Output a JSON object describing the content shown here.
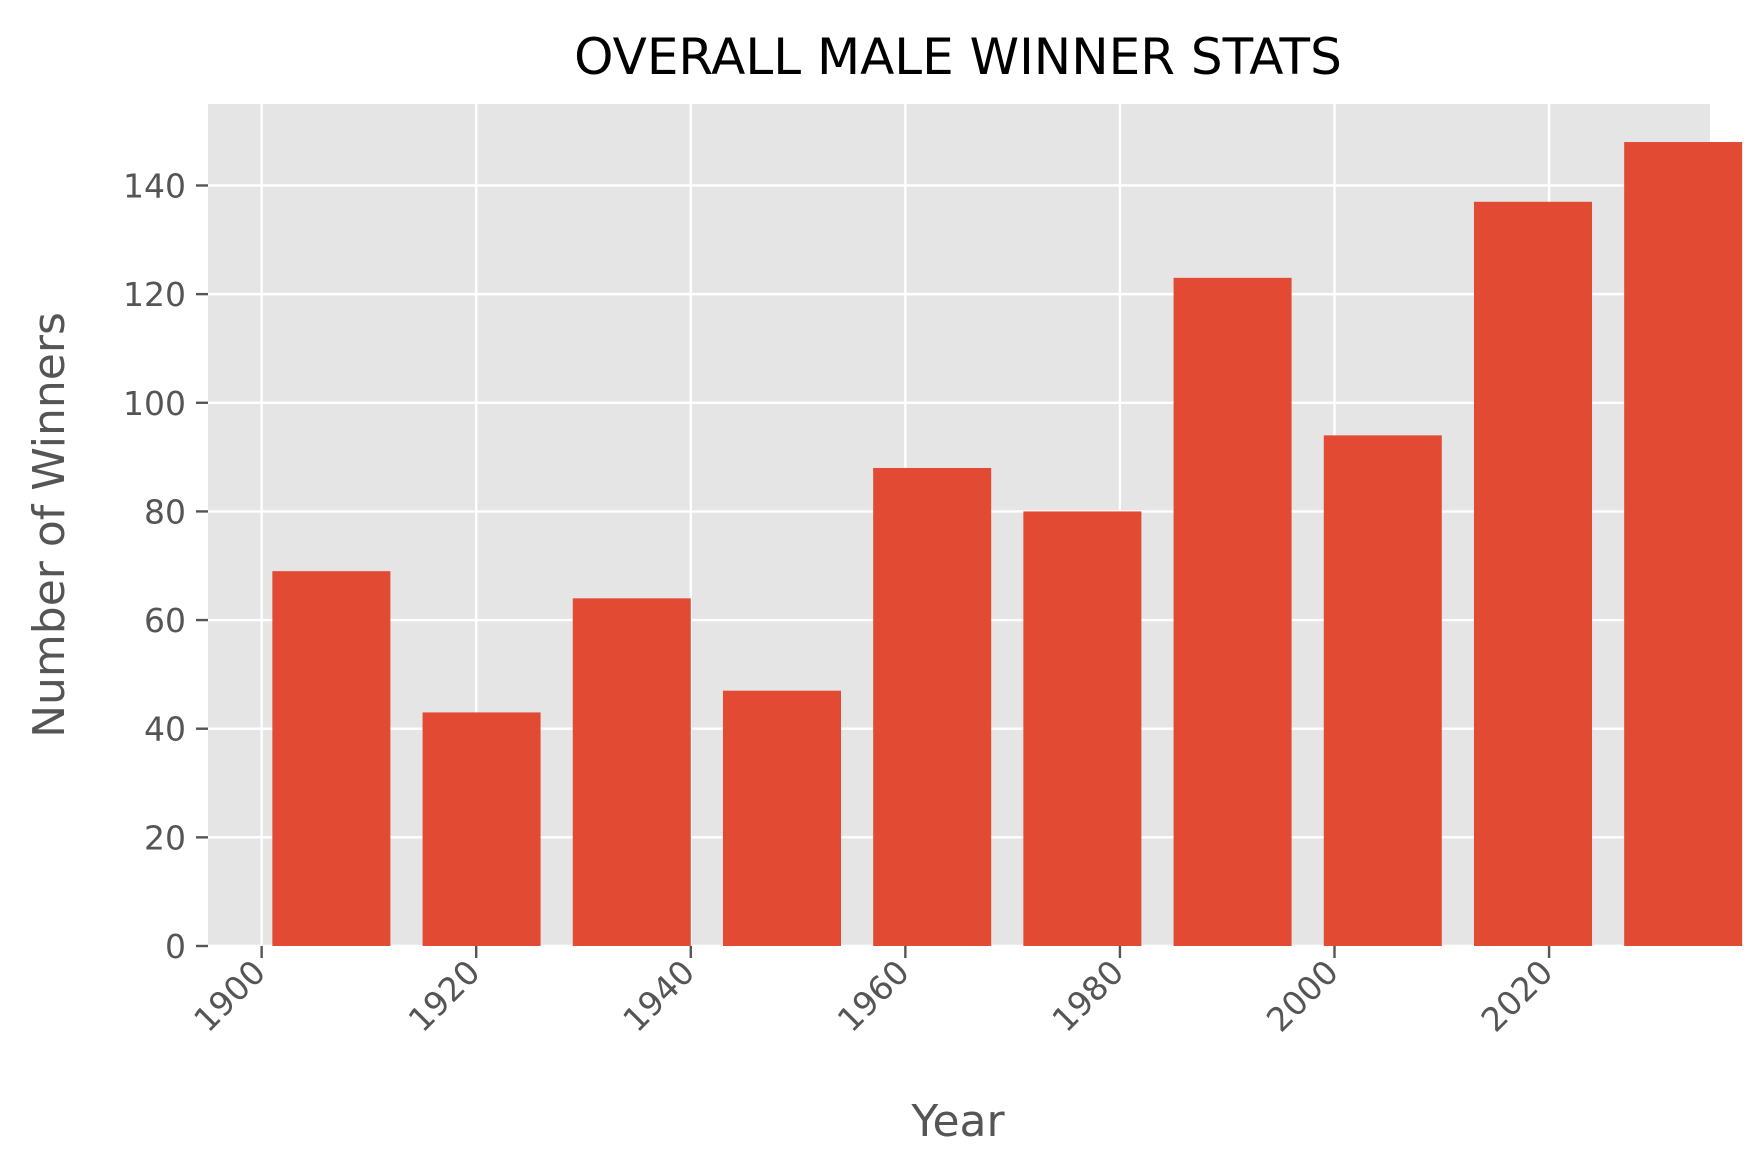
{
  "chart_data": {
    "type": "bar",
    "title": "OVERALL MALE WINNER STATS",
    "xlabel": "Year",
    "ylabel": "Number of Winners",
    "x": [
      1906.5,
      1920.5,
      1934.5,
      1948.5,
      1962.5,
      1976.5,
      1990.5,
      2004.5,
      2018.5,
      2032.5
    ],
    "x_note": "",
    "values": [
      69,
      43,
      64,
      47,
      88,
      80,
      123,
      94,
      137,
      148
    ],
    "bar_width": 11,
    "xlim": [
      1895,
      2035
    ],
    "ylim": [
      0,
      155
    ],
    "xticks": [
      "1900",
      "1920",
      "1940",
      "1960",
      "1980",
      "2000",
      "2020"
    ],
    "yticks": [
      "0",
      "20",
      "40",
      "60",
      "80",
      "100",
      "120",
      "140"
    ],
    "grid": true,
    "colors": {
      "bar": "#E24A33",
      "plot_background": "#E5E5E5",
      "grid": "#FFFFFF",
      "tick": "#555555"
    }
  }
}
